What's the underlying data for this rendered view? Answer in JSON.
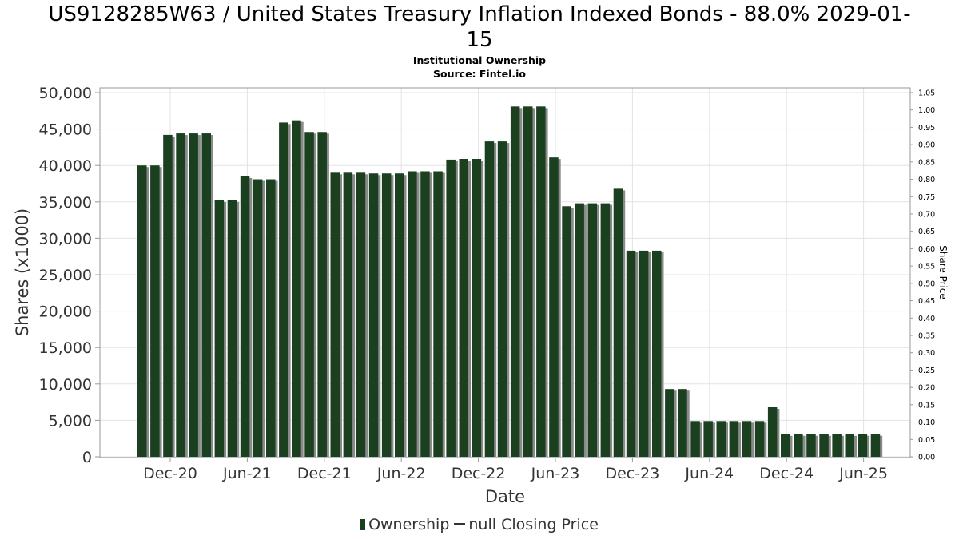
{
  "chart_data": {
    "type": "bar",
    "title_line1": "US9128285W63 / United States Treasury Inflation Indexed Bonds - 88.0% 2029-01-",
    "title_line2": "15",
    "subtitle1": "Institutional Ownership",
    "subtitle2": "Source: Fintel.io",
    "xlabel": "Date",
    "ylabel": "Shares (x1000)",
    "y2label": "Share Price",
    "ylim": [
      0,
      50000
    ],
    "y2lim": [
      0,
      1.05
    ],
    "yticks": [
      "0",
      "5,000",
      "10,000",
      "15,000",
      "20,000",
      "25,000",
      "30,000",
      "35,000",
      "40,000",
      "45,000",
      "50,000"
    ],
    "y2ticks": [
      "0.00",
      "0.05",
      "0.10",
      "0.15",
      "0.20",
      "0.25",
      "0.30",
      "0.35",
      "0.40",
      "0.45",
      "0.50",
      "0.55",
      "0.60",
      "0.65",
      "0.70",
      "0.75",
      "0.80",
      "0.85",
      "0.90",
      "0.95",
      "1.00",
      "1.05"
    ],
    "xticks": [
      "Dec-20",
      "Jun-21",
      "Dec-21",
      "Jun-22",
      "Dec-22",
      "Jun-23",
      "Dec-23",
      "Jun-24",
      "Dec-24",
      "Jun-25"
    ],
    "grid": true,
    "legend_position": "bottom",
    "series": [
      {
        "name": "Ownership",
        "color": "#1a4020",
        "values": [
          40000,
          40000,
          44200,
          44400,
          44400,
          44400,
          35200,
          35200,
          38500,
          38100,
          38100,
          45900,
          46200,
          44600,
          44600,
          39000,
          39000,
          39000,
          38900,
          38900,
          38900,
          39200,
          39200,
          39200,
          40800,
          40900,
          40900,
          43300,
          43300,
          48100,
          48100,
          48100,
          41100,
          34400,
          34800,
          34800,
          34800,
          36800,
          28300,
          28300,
          28300,
          9300,
          9300,
          4900,
          4900,
          4900,
          4900,
          4900,
          4900,
          6800,
          3100,
          3100,
          3100,
          3100,
          3100,
          3100,
          3100,
          3100
        ]
      },
      {
        "name": "null Closing Price",
        "color": "#333333",
        "values": []
      }
    ]
  }
}
